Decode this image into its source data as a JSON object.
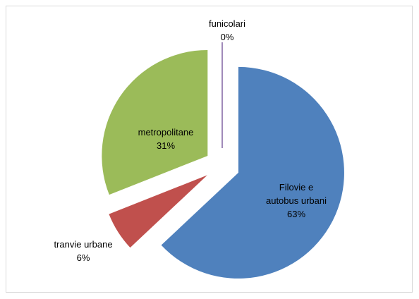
{
  "chart_data": {
    "type": "pie",
    "categories": [
      "Filovie e autobus urbani",
      "tranvie urbane",
      "metropolitane",
      "funicolari"
    ],
    "values": [
      63,
      6,
      31,
      0
    ],
    "value_labels": [
      "63%",
      "6%",
      "31%",
      "0%"
    ],
    "colors": [
      "#4f81bd",
      "#c0504d",
      "#9bbb59",
      "#8064a2"
    ],
    "exploded": true
  }
}
